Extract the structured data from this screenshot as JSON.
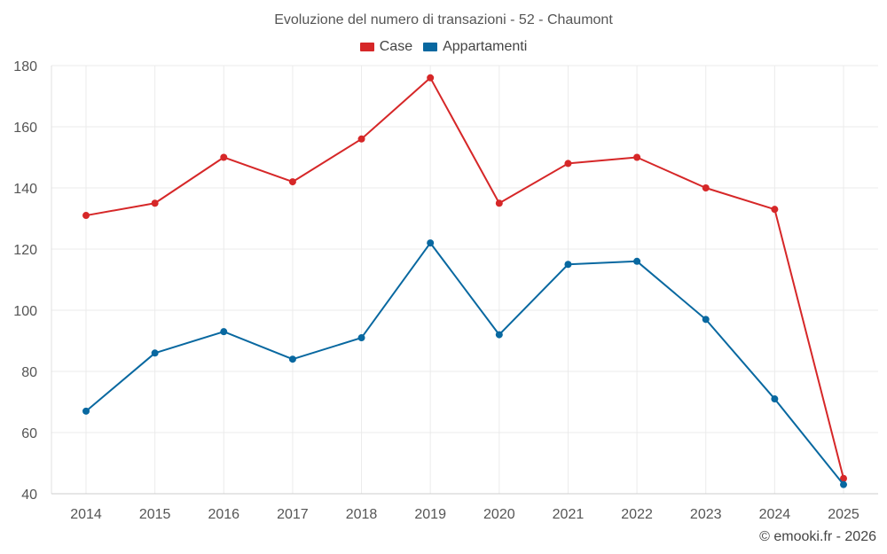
{
  "chart_data": {
    "type": "line",
    "title": "Evoluzione del numero di transazioni - 52 - Chaumont",
    "xlabel": "",
    "ylabel": "",
    "categories": [
      "2014",
      "2015",
      "2016",
      "2017",
      "2018",
      "2019",
      "2020",
      "2021",
      "2022",
      "2023",
      "2024",
      "2025"
    ],
    "ylim": [
      40,
      180
    ],
    "yticks": [
      40,
      60,
      80,
      100,
      120,
      140,
      160,
      180
    ],
    "grid": true,
    "legend_position": "top-center",
    "series": [
      {
        "name": "Case",
        "color": "#d62728",
        "values": [
          131,
          135,
          150,
          142,
          156,
          176,
          135,
          148,
          150,
          140,
          133,
          45
        ]
      },
      {
        "name": "Appartamenti",
        "color": "#0868a0",
        "values": [
          67,
          86,
          93,
          84,
          91,
          122,
          92,
          115,
          116,
          97,
          71,
          43
        ]
      }
    ]
  },
  "credit": "© emooki.fr - 2026"
}
